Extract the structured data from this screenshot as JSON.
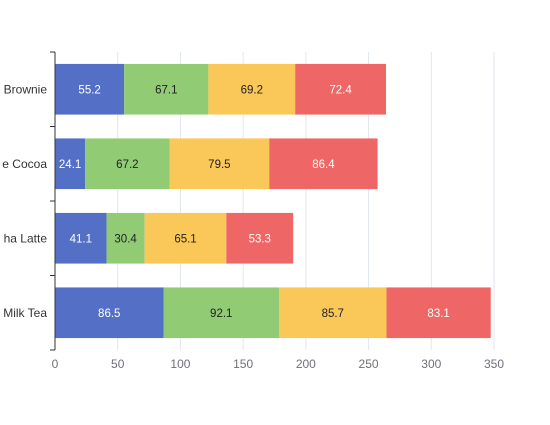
{
  "chart_data": {
    "type": "bar",
    "orientation": "horizontal",
    "stacked": true,
    "categories": [
      "Brownie",
      "Hot Chocolate Cocoa",
      "Matcha Latte",
      "Bubble Milk Tea"
    ],
    "category_labels_visible": [
      "Brownie",
      "e Cocoa",
      "ha Latte",
      "Milk Tea"
    ],
    "series": [
      {
        "values": [
          55.2,
          24.1,
          41.1,
          86.5
        ],
        "color": "#5470c6"
      },
      {
        "values": [
          67.1,
          67.2,
          30.4,
          92.1
        ],
        "color": "#91cc75"
      },
      {
        "values": [
          69.2,
          79.5,
          65.1,
          85.7
        ],
        "color": "#fac858"
      },
      {
        "values": [
          72.4,
          86.4,
          53.3,
          83.1
        ],
        "color": "#ee6666"
      }
    ],
    "xlim": [
      0,
      350
    ],
    "x_ticks": [
      0,
      50,
      100,
      150,
      200,
      250,
      300,
      350
    ],
    "grid": "vertical",
    "data_labels": true,
    "title": "",
    "xlabel": "",
    "ylabel": ""
  }
}
